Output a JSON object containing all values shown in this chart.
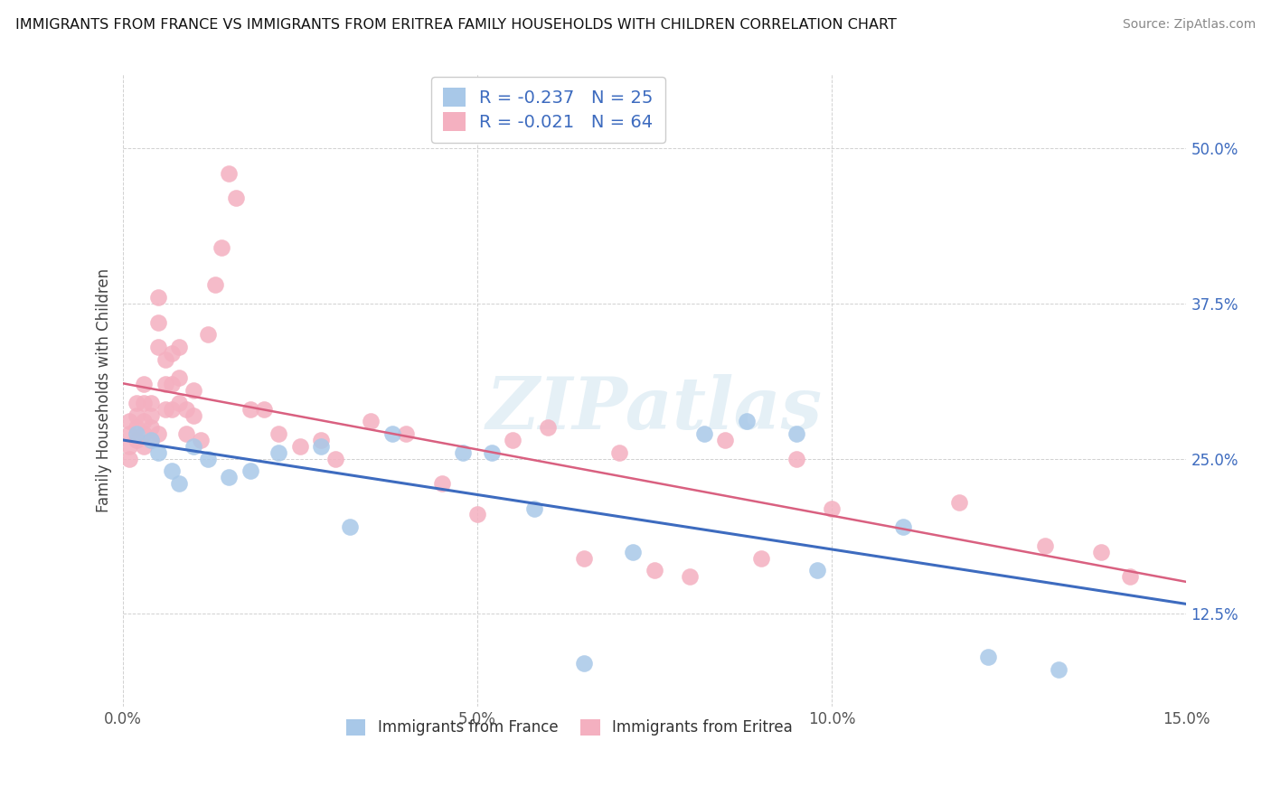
{
  "title": "IMMIGRANTS FROM FRANCE VS IMMIGRANTS FROM ERITREA FAMILY HOUSEHOLDS WITH CHILDREN CORRELATION CHART",
  "source": "Source: ZipAtlas.com",
  "ylabel": "Family Households with Children",
  "xlabel_france": "Immigrants from France",
  "xlabel_eritrea": "Immigrants from Eritrea",
  "france_R": -0.237,
  "france_N": 25,
  "eritrea_R": -0.021,
  "eritrea_N": 64,
  "xlim": [
    0.0,
    0.15
  ],
  "ylim": [
    0.05,
    0.56
  ],
  "yticks": [
    0.125,
    0.25,
    0.375,
    0.5
  ],
  "ytick_labels": [
    "12.5%",
    "25.0%",
    "37.5%",
    "50.0%"
  ],
  "xticks": [
    0.0,
    0.05,
    0.1,
    0.15
  ],
  "xtick_labels": [
    "0.0%",
    "5.0%",
    "10.0%",
    "15.0%"
  ],
  "france_color": "#a8c8e8",
  "eritrea_color": "#f4b0c0",
  "france_line_color": "#3d6bbf",
  "eritrea_line_color": "#d96080",
  "background_color": "#ffffff",
  "watermark": "ZIPatlas",
  "france_x": [
    0.002,
    0.004,
    0.005,
    0.007,
    0.008,
    0.01,
    0.012,
    0.015,
    0.018,
    0.022,
    0.028,
    0.032,
    0.038,
    0.048,
    0.052,
    0.058,
    0.065,
    0.072,
    0.082,
    0.088,
    0.095,
    0.098,
    0.11,
    0.122,
    0.132
  ],
  "france_y": [
    0.27,
    0.265,
    0.255,
    0.24,
    0.23,
    0.26,
    0.25,
    0.235,
    0.24,
    0.255,
    0.26,
    0.195,
    0.27,
    0.255,
    0.255,
    0.21,
    0.085,
    0.175,
    0.27,
    0.28,
    0.27,
    0.16,
    0.195,
    0.09,
    0.08
  ],
  "eritrea_x": [
    0.001,
    0.001,
    0.001,
    0.001,
    0.002,
    0.002,
    0.002,
    0.002,
    0.003,
    0.003,
    0.003,
    0.003,
    0.003,
    0.004,
    0.004,
    0.004,
    0.004,
    0.005,
    0.005,
    0.005,
    0.005,
    0.006,
    0.006,
    0.006,
    0.007,
    0.007,
    0.007,
    0.008,
    0.008,
    0.008,
    0.009,
    0.009,
    0.01,
    0.01,
    0.011,
    0.012,
    0.013,
    0.014,
    0.015,
    0.016,
    0.018,
    0.02,
    0.022,
    0.025,
    0.028,
    0.03,
    0.035,
    0.04,
    0.045,
    0.05,
    0.055,
    0.06,
    0.065,
    0.07,
    0.075,
    0.08,
    0.085,
    0.09,
    0.095,
    0.1,
    0.118,
    0.13,
    0.138,
    0.142
  ],
  "eritrea_y": [
    0.27,
    0.26,
    0.25,
    0.28,
    0.275,
    0.265,
    0.285,
    0.295,
    0.27,
    0.26,
    0.28,
    0.295,
    0.31,
    0.265,
    0.275,
    0.285,
    0.295,
    0.27,
    0.34,
    0.36,
    0.38,
    0.29,
    0.31,
    0.33,
    0.29,
    0.31,
    0.335,
    0.295,
    0.315,
    0.34,
    0.27,
    0.29,
    0.285,
    0.305,
    0.265,
    0.35,
    0.39,
    0.42,
    0.48,
    0.46,
    0.29,
    0.29,
    0.27,
    0.26,
    0.265,
    0.25,
    0.28,
    0.27,
    0.23,
    0.205,
    0.265,
    0.275,
    0.17,
    0.255,
    0.16,
    0.155,
    0.265,
    0.17,
    0.25,
    0.21,
    0.215,
    0.18,
    0.175,
    0.155
  ]
}
